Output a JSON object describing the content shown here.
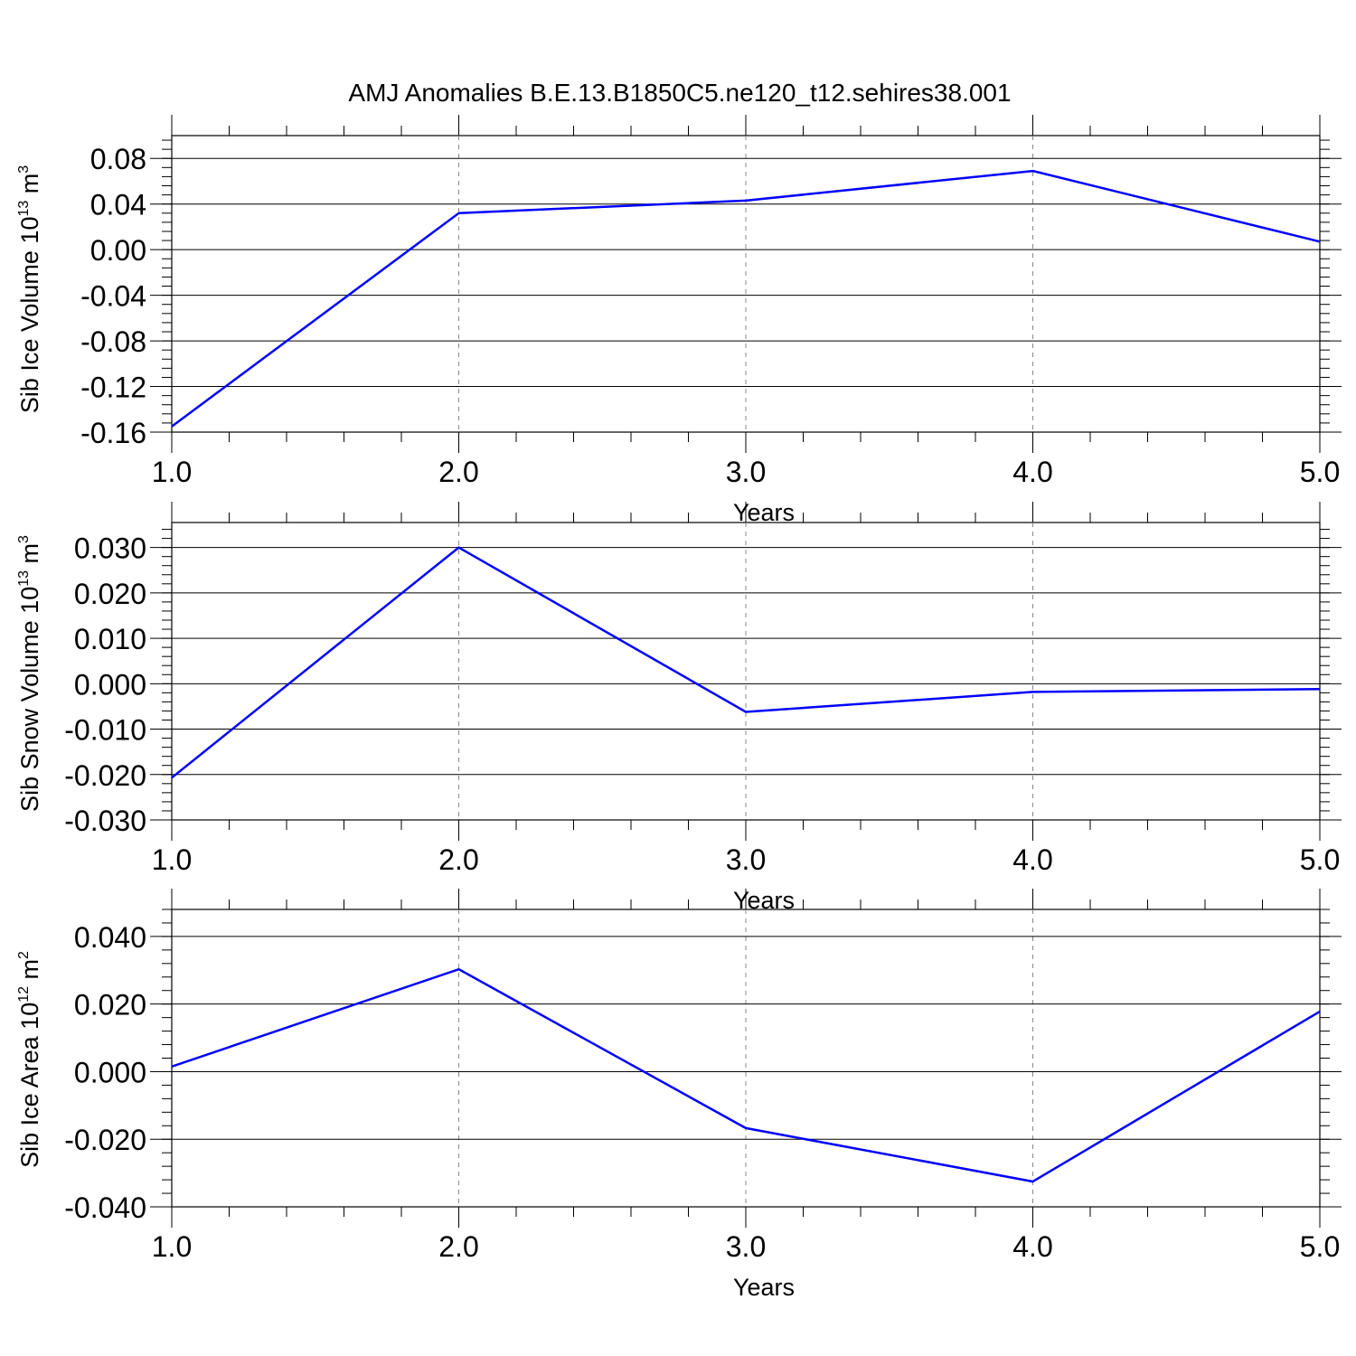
{
  "figure": {
    "title": "AMJ Anomalies B.E.13.B1850C5.ne120_t12.sehires38.001"
  },
  "colors": {
    "line": "#0000ff",
    "axes": "#000000",
    "grid": "#888888"
  },
  "chart_data": [
    {
      "type": "line",
      "xlabel": "Years",
      "ylabel": {
        "main": "Sib Ice Volume 10",
        "sup": "13",
        "unit": " m",
        "unit_sup": "3"
      },
      "x": [
        1.0,
        2.0,
        3.0,
        4.0,
        5.0
      ],
      "y": [
        -0.155,
        0.032,
        0.043,
        0.069,
        0.007
      ],
      "xlim": [
        1.0,
        5.0
      ],
      "ylim": [
        -0.16,
        0.1
      ],
      "xticks": [
        1.0,
        2.0,
        3.0,
        4.0,
        5.0
      ],
      "xtick_labels": [
        "1.0",
        "2.0",
        "3.0",
        "4.0",
        "5.0"
      ],
      "yticks": [
        -0.16,
        -0.12,
        -0.08,
        -0.04,
        0.0,
        0.04,
        0.08
      ],
      "ytick_labels": [
        "-0.16",
        "-0.12",
        "-0.08",
        "-0.04",
        "0.00",
        "0.04",
        "0.08"
      ],
      "grid": "vertical dashed at major x ticks"
    },
    {
      "type": "line",
      "xlabel": "Years",
      "ylabel": {
        "main": "Sib Snow Volume 10",
        "sup": "13",
        "unit": " m",
        "unit_sup": "3"
      },
      "x": [
        1.0,
        2.0,
        3.0,
        4.0,
        5.0
      ],
      "y": [
        -0.0207,
        0.03,
        -0.0062,
        -0.0018,
        -0.0012
      ],
      "xlim": [
        1.0,
        5.0
      ],
      "ylim": [
        -0.03,
        0.0355
      ],
      "xticks": [
        1.0,
        2.0,
        3.0,
        4.0,
        5.0
      ],
      "xtick_labels": [
        "1.0",
        "2.0",
        "3.0",
        "4.0",
        "5.0"
      ],
      "yticks": [
        -0.03,
        -0.02,
        -0.01,
        0.0,
        0.01,
        0.02,
        0.03
      ],
      "ytick_labels": [
        "-0.030",
        "-0.020",
        "-0.010",
        "0.000",
        "0.010",
        "0.020",
        "0.030"
      ],
      "grid": "vertical dashed at major x ticks"
    },
    {
      "type": "line",
      "xlabel": "Years",
      "ylabel": {
        "main": "Sib Ice Area 10",
        "sup": "12",
        "unit": " m",
        "unit_sup": "2"
      },
      "x": [
        1.0,
        2.0,
        3.0,
        4.0,
        5.0
      ],
      "y": [
        0.0015,
        0.0303,
        -0.0167,
        -0.0325,
        0.0178
      ],
      "xlim": [
        1.0,
        5.0
      ],
      "ylim": [
        -0.04,
        0.048
      ],
      "xticks": [
        1.0,
        2.0,
        3.0,
        4.0,
        5.0
      ],
      "xtick_labels": [
        "1.0",
        "2.0",
        "3.0",
        "4.0",
        "5.0"
      ],
      "yticks": [
        -0.04,
        -0.02,
        0.0,
        0.02,
        0.04
      ],
      "ytick_labels": [
        "-0.040",
        "-0.020",
        "0.000",
        "0.020",
        "0.040"
      ],
      "grid": "vertical dashed at major x ticks"
    }
  ]
}
